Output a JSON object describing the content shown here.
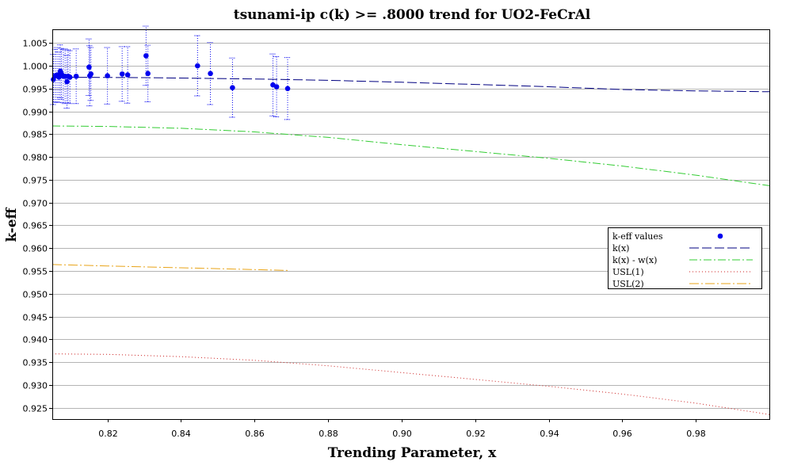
{
  "chart_data": {
    "type": "scatter",
    "title": "tsunami-ip c(k) >= .8000 trend for UO2-FeCrAl",
    "xlabel": "Trending Parameter, x",
    "ylabel": "k-eff",
    "xlim": [
      0.805,
      1.0
    ],
    "ylim": [
      0.9225,
      1.008
    ],
    "xticks": [
      0.82,
      0.84,
      0.86,
      0.88,
      0.9,
      0.92,
      0.94,
      0.96,
      0.98
    ],
    "xtick_labels": [
      "0.82",
      "0.84",
      "0.86",
      "0.88",
      "0.90",
      "0.92",
      "0.94",
      "0.96",
      "0.98"
    ],
    "yticks": [
      0.925,
      0.93,
      0.935,
      0.94,
      0.945,
      0.95,
      0.955,
      0.96,
      0.965,
      0.97,
      0.975,
      0.98,
      0.985,
      0.99,
      0.995,
      1.0,
      1.005
    ],
    "ytick_labels": [
      "0.925",
      "0.930",
      "0.935",
      "0.940",
      "0.945",
      "0.950",
      "0.955",
      "0.960",
      "0.965",
      "0.970",
      "0.975",
      "0.980",
      "0.985",
      "0.990",
      "0.995",
      "1.000",
      "1.005"
    ],
    "grid": "horizontal",
    "legend_position": "right",
    "series": [
      {
        "name": "k-eff values",
        "kind": "points",
        "color": "#0000ee",
        "points": [
          {
            "x": 0.8053,
            "y": 0.997,
            "err": 0.0055
          },
          {
            "x": 0.8058,
            "y": 0.9978,
            "err": 0.0058
          },
          {
            "x": 0.8063,
            "y": 0.998,
            "err": 0.006
          },
          {
            "x": 0.8068,
            "y": 0.9975,
            "err": 0.0055
          },
          {
            "x": 0.8072,
            "y": 0.9988,
            "err": 0.0058
          },
          {
            "x": 0.8075,
            "y": 0.9982,
            "err": 0.0056
          },
          {
            "x": 0.808,
            "y": 0.9977,
            "err": 0.0058
          },
          {
            "x": 0.8085,
            "y": 0.9977,
            "err": 0.006
          },
          {
            "x": 0.809,
            "y": 0.9965,
            "err": 0.0058
          },
          {
            "x": 0.8093,
            "y": 0.9977,
            "err": 0.0058
          },
          {
            "x": 0.8098,
            "y": 0.9975,
            "err": 0.0058
          },
          {
            "x": 0.8115,
            "y": 0.9977,
            "err": 0.006
          },
          {
            "x": 0.815,
            "y": 0.9997,
            "err": 0.0062
          },
          {
            "x": 0.8152,
            "y": 0.9978,
            "err": 0.0066
          },
          {
            "x": 0.8155,
            "y": 0.9982,
            "err": 0.0058
          },
          {
            "x": 0.82,
            "y": 0.9978,
            "err": 0.0062
          },
          {
            "x": 0.824,
            "y": 0.9982,
            "err": 0.006
          },
          {
            "x": 0.8255,
            "y": 0.998,
            "err": 0.0062
          },
          {
            "x": 0.8305,
            "y": 1.0022,
            "err": 0.0065
          },
          {
            "x": 0.831,
            "y": 0.9983,
            "err": 0.0062
          },
          {
            "x": 0.8445,
            "y": 1.0,
            "err": 0.0066
          },
          {
            "x": 0.848,
            "y": 0.9983,
            "err": 0.0068
          },
          {
            "x": 0.854,
            "y": 0.9952,
            "err": 0.0065
          },
          {
            "x": 0.865,
            "y": 0.9958,
            "err": 0.0068
          },
          {
            "x": 0.866,
            "y": 0.9954,
            "err": 0.0066
          },
          {
            "x": 0.869,
            "y": 0.995,
            "err": 0.0068
          }
        ]
      },
      {
        "name": "k(x)",
        "kind": "line",
        "color": "#000080",
        "dash": "12,4",
        "x": [
          0.805,
          0.83,
          0.86,
          0.88,
          0.9,
          0.92,
          0.94,
          0.96,
          0.98,
          1.0
        ],
        "y": [
          0.9975,
          0.9974,
          0.9971,
          0.9968,
          0.9964,
          0.9959,
          0.9954,
          0.9948,
          0.9945,
          0.9943
        ]
      },
      {
        "name": "k(x) - w(x)",
        "kind": "line",
        "color": "#33cc33",
        "dash": "10,3,2,3",
        "x": [
          0.805,
          0.82,
          0.84,
          0.86,
          0.88,
          0.9,
          0.92,
          0.94,
          0.96,
          0.98,
          1.0
        ],
        "y": [
          0.9868,
          0.9867,
          0.9863,
          0.9855,
          0.9843,
          0.9827,
          0.9812,
          0.9797,
          0.978,
          0.976,
          0.9737
        ]
      },
      {
        "name": "USL(1)",
        "kind": "line",
        "color": "#cc2222",
        "dash": "1,3",
        "x": [
          0.805,
          0.82,
          0.84,
          0.86,
          0.88,
          0.9,
          0.92,
          0.94,
          0.96,
          0.98,
          1.0
        ],
        "y": [
          0.9368,
          0.9367,
          0.9362,
          0.9354,
          0.9342,
          0.9327,
          0.9312,
          0.9297,
          0.928,
          0.926,
          0.9235
        ]
      },
      {
        "name": "USL(2)",
        "kind": "line",
        "color": "#e8a317",
        "dash": "12,3,2,3",
        "x": [
          0.805,
          0.82,
          0.84,
          0.86,
          0.8695
        ],
        "y": [
          0.9564,
          0.9561,
          0.9557,
          0.9553,
          0.9551
        ]
      }
    ]
  }
}
